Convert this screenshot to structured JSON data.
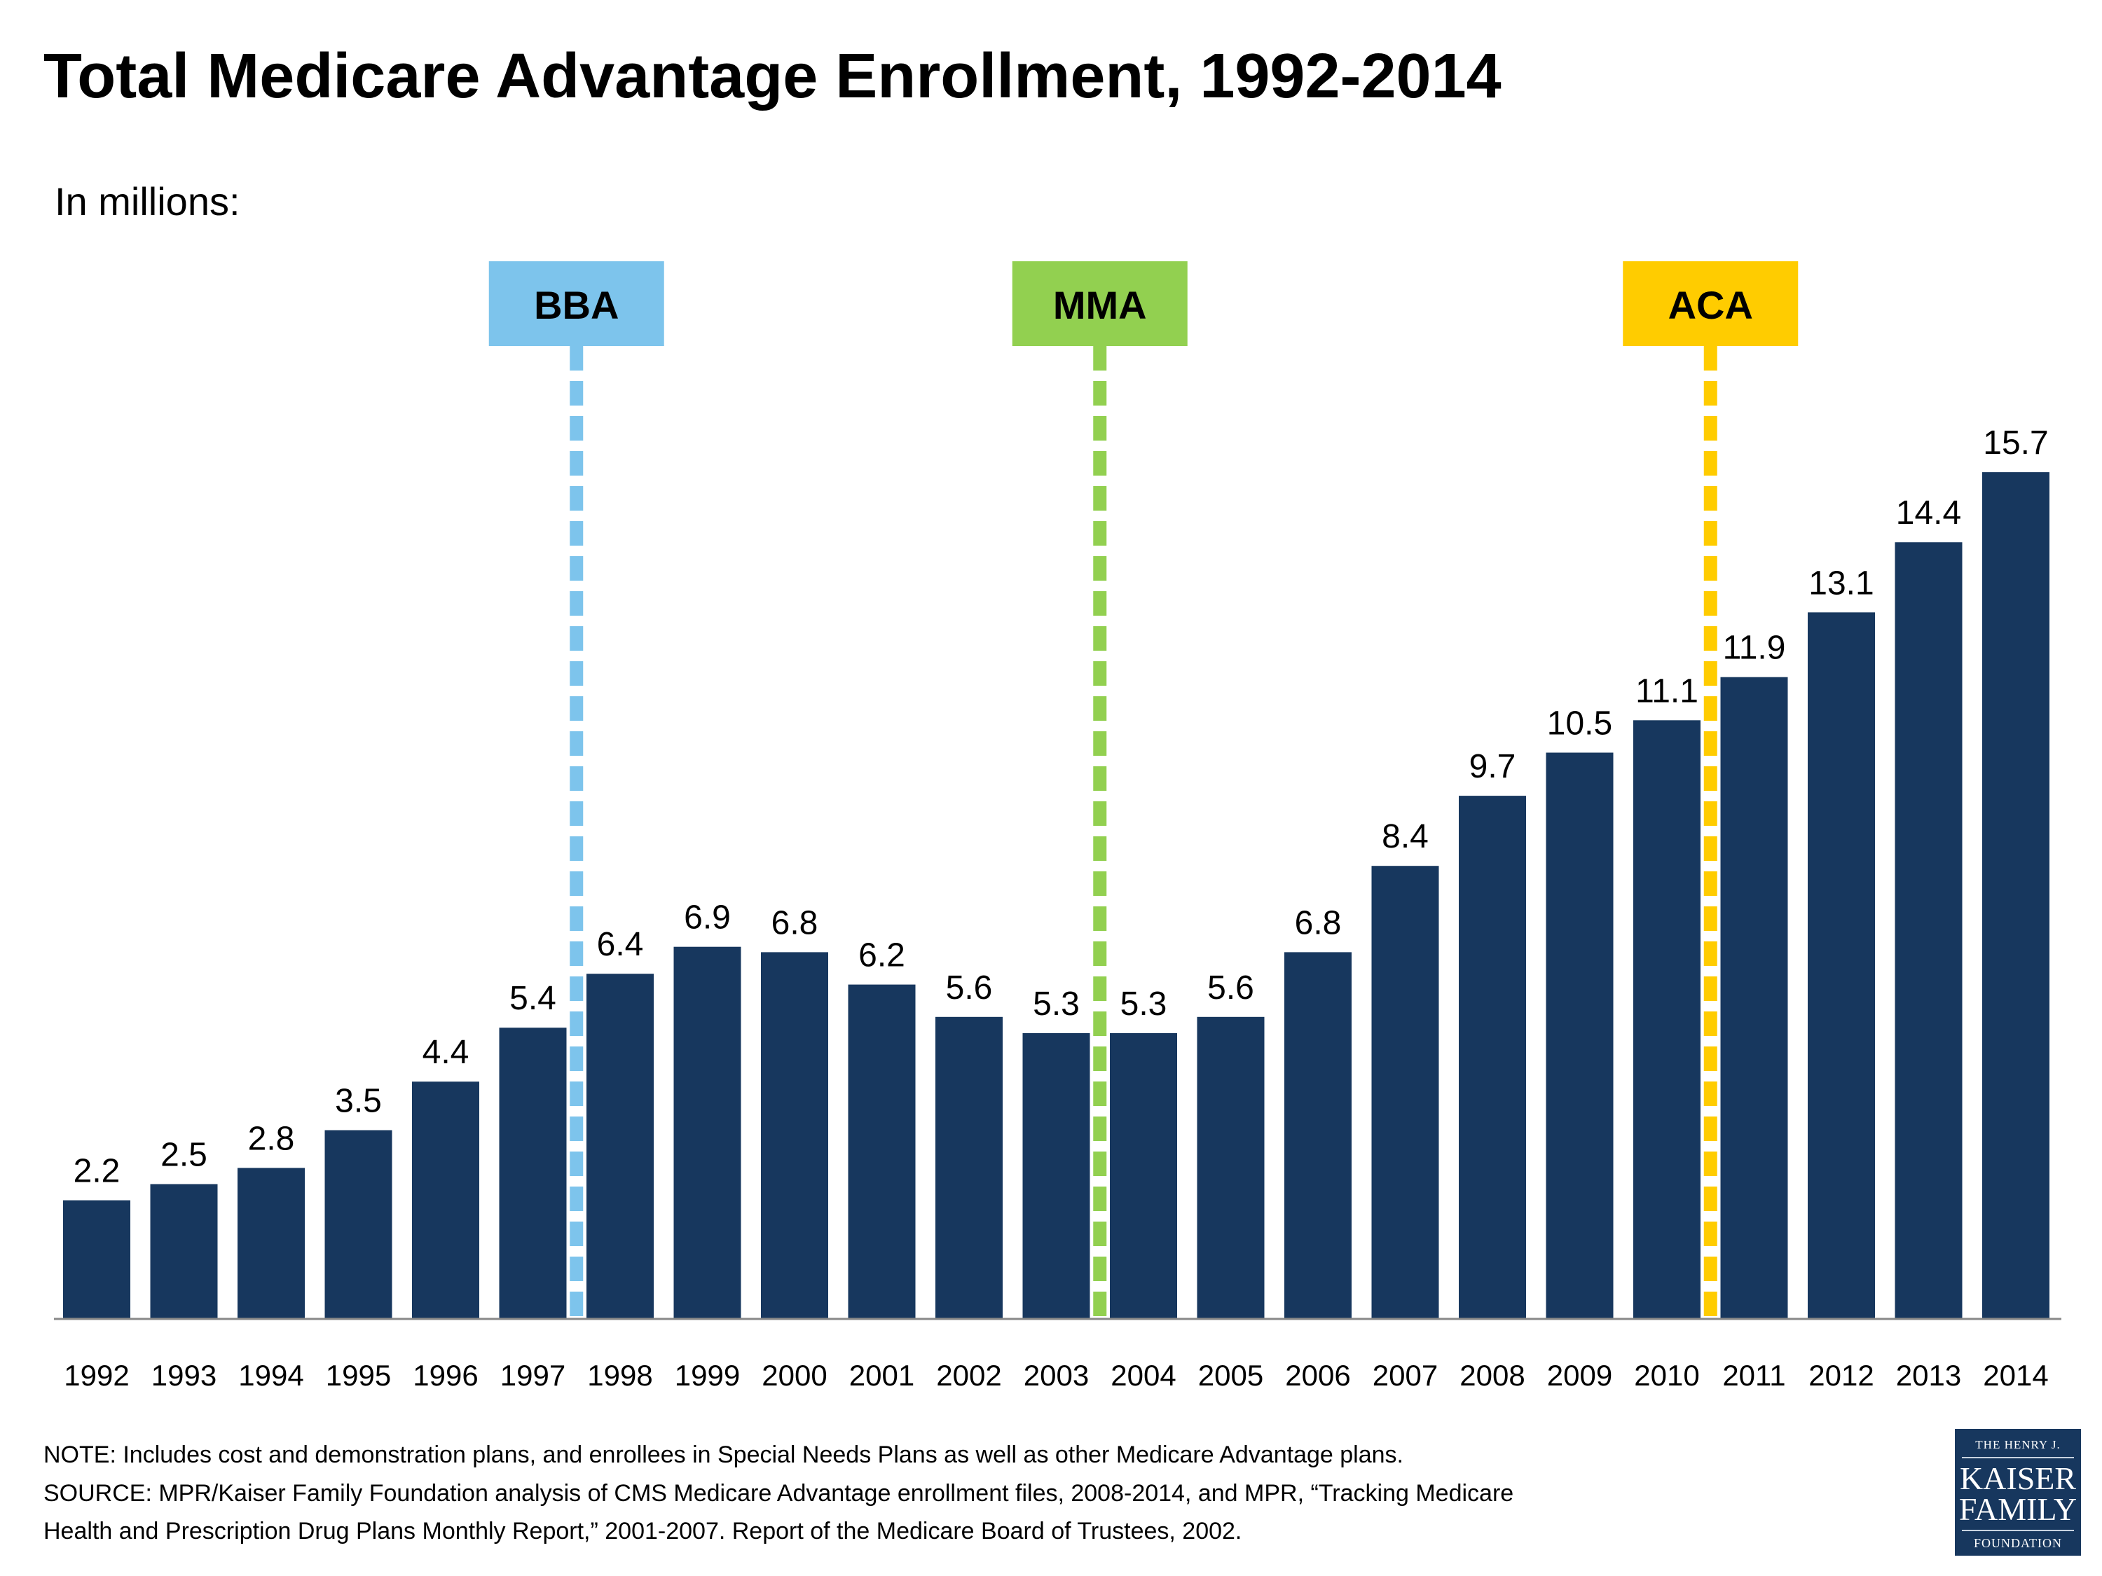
{
  "title": "Total Medicare Advantage Enrollment, 1992-2014",
  "subtitle": "In millions:",
  "chart_data": {
    "type": "bar",
    "title": "Total Medicare Advantage Enrollment, 1992-2014",
    "ylabel": "In millions:",
    "xlabel": "",
    "categories": [
      "1992",
      "1993",
      "1994",
      "1995",
      "1996",
      "1997",
      "1998",
      "1999",
      "2000",
      "2001",
      "2002",
      "2003",
      "2004",
      "2005",
      "2006",
      "2007",
      "2008",
      "2009",
      "2010",
      "2011",
      "2012",
      "2013",
      "2014"
    ],
    "values": [
      2.2,
      2.5,
      2.8,
      3.5,
      4.4,
      5.4,
      6.4,
      6.9,
      6.8,
      6.2,
      5.6,
      5.3,
      5.3,
      5.6,
      6.8,
      8.4,
      9.7,
      10.5,
      11.1,
      11.9,
      13.1,
      14.4,
      15.7
    ],
    "ylim": [
      0,
      17
    ],
    "grid": false,
    "bar_color": "#17375e",
    "annotations": [
      {
        "label": "BBA",
        "between": [
          "1997",
          "1998"
        ],
        "color": "#7dc4ec"
      },
      {
        "label": "MMA",
        "between": [
          "2003",
          "2004"
        ],
        "color": "#92d050"
      },
      {
        "label": "ACA",
        "between": [
          "2010",
          "2011"
        ],
        "color": "#ffcc00"
      }
    ]
  },
  "footer": {
    "note": "NOTE:  Includes cost and demonstration plans, and enrollees in Special Needs Plans as well as other Medicare Advantage plans.",
    "source_1": "SOURCE:  MPR/Kaiser Family Foundation analysis of CMS Medicare Advantage enrollment files, 2008-2014,  and MPR, “Tracking Medicare",
    "source_2": "Health and Prescription Drug Plans Monthly Report,” 2001-2007.  Report of the Medicare Board of Trustees, 2002."
  },
  "logo": {
    "line1": "THE HENRY J.",
    "line2": "KAISER",
    "line3": "FAMILY",
    "line4": "FOUNDATION"
  }
}
